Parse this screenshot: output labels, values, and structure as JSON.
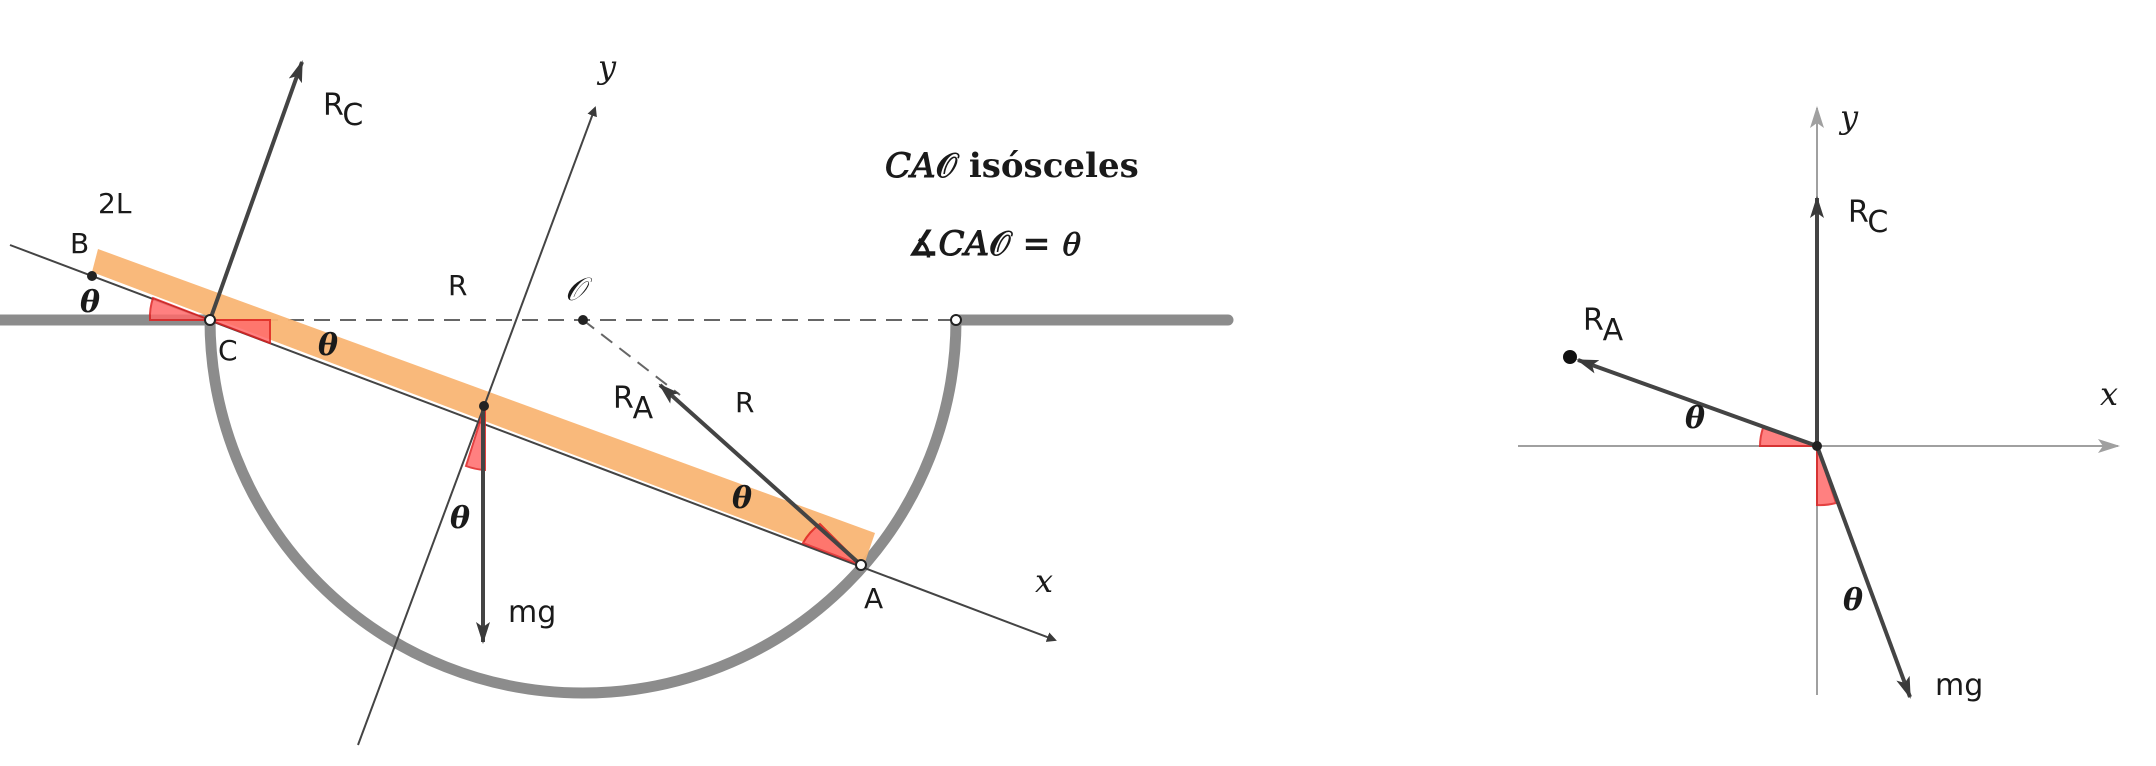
{
  "left_diagram": {
    "labels": {
      "rc": "R",
      "rc_sub": "C",
      "two_l": "2L",
      "b": "B",
      "c": "C",
      "a": "A",
      "r_top": "R",
      "r_side": "R",
      "ra": "R",
      "ra_sub": "A",
      "mg": "mg",
      "center": "𝒪",
      "axis_x": "x",
      "axis_y": "y",
      "theta": "θ"
    },
    "notes": {
      "line1": "𝐶𝐴𝒪 isósceles",
      "line2": "∡𝐶𝐴𝒪 = 𝜃"
    }
  },
  "right_diagram": {
    "labels": {
      "rc": "R",
      "rc_sub": "C",
      "ra": "R",
      "ra_sub": "A",
      "mg": "mg",
      "axis_x": "x",
      "axis_y": "y",
      "theta": "θ"
    }
  },
  "colors": {
    "rod": "#f9b574",
    "angle_fill": "#ff6b6b",
    "angle_stroke": "#e02020",
    "bowl": "#8c8c8c",
    "vector": "#444444",
    "axis_right": "#9a9a9a"
  }
}
